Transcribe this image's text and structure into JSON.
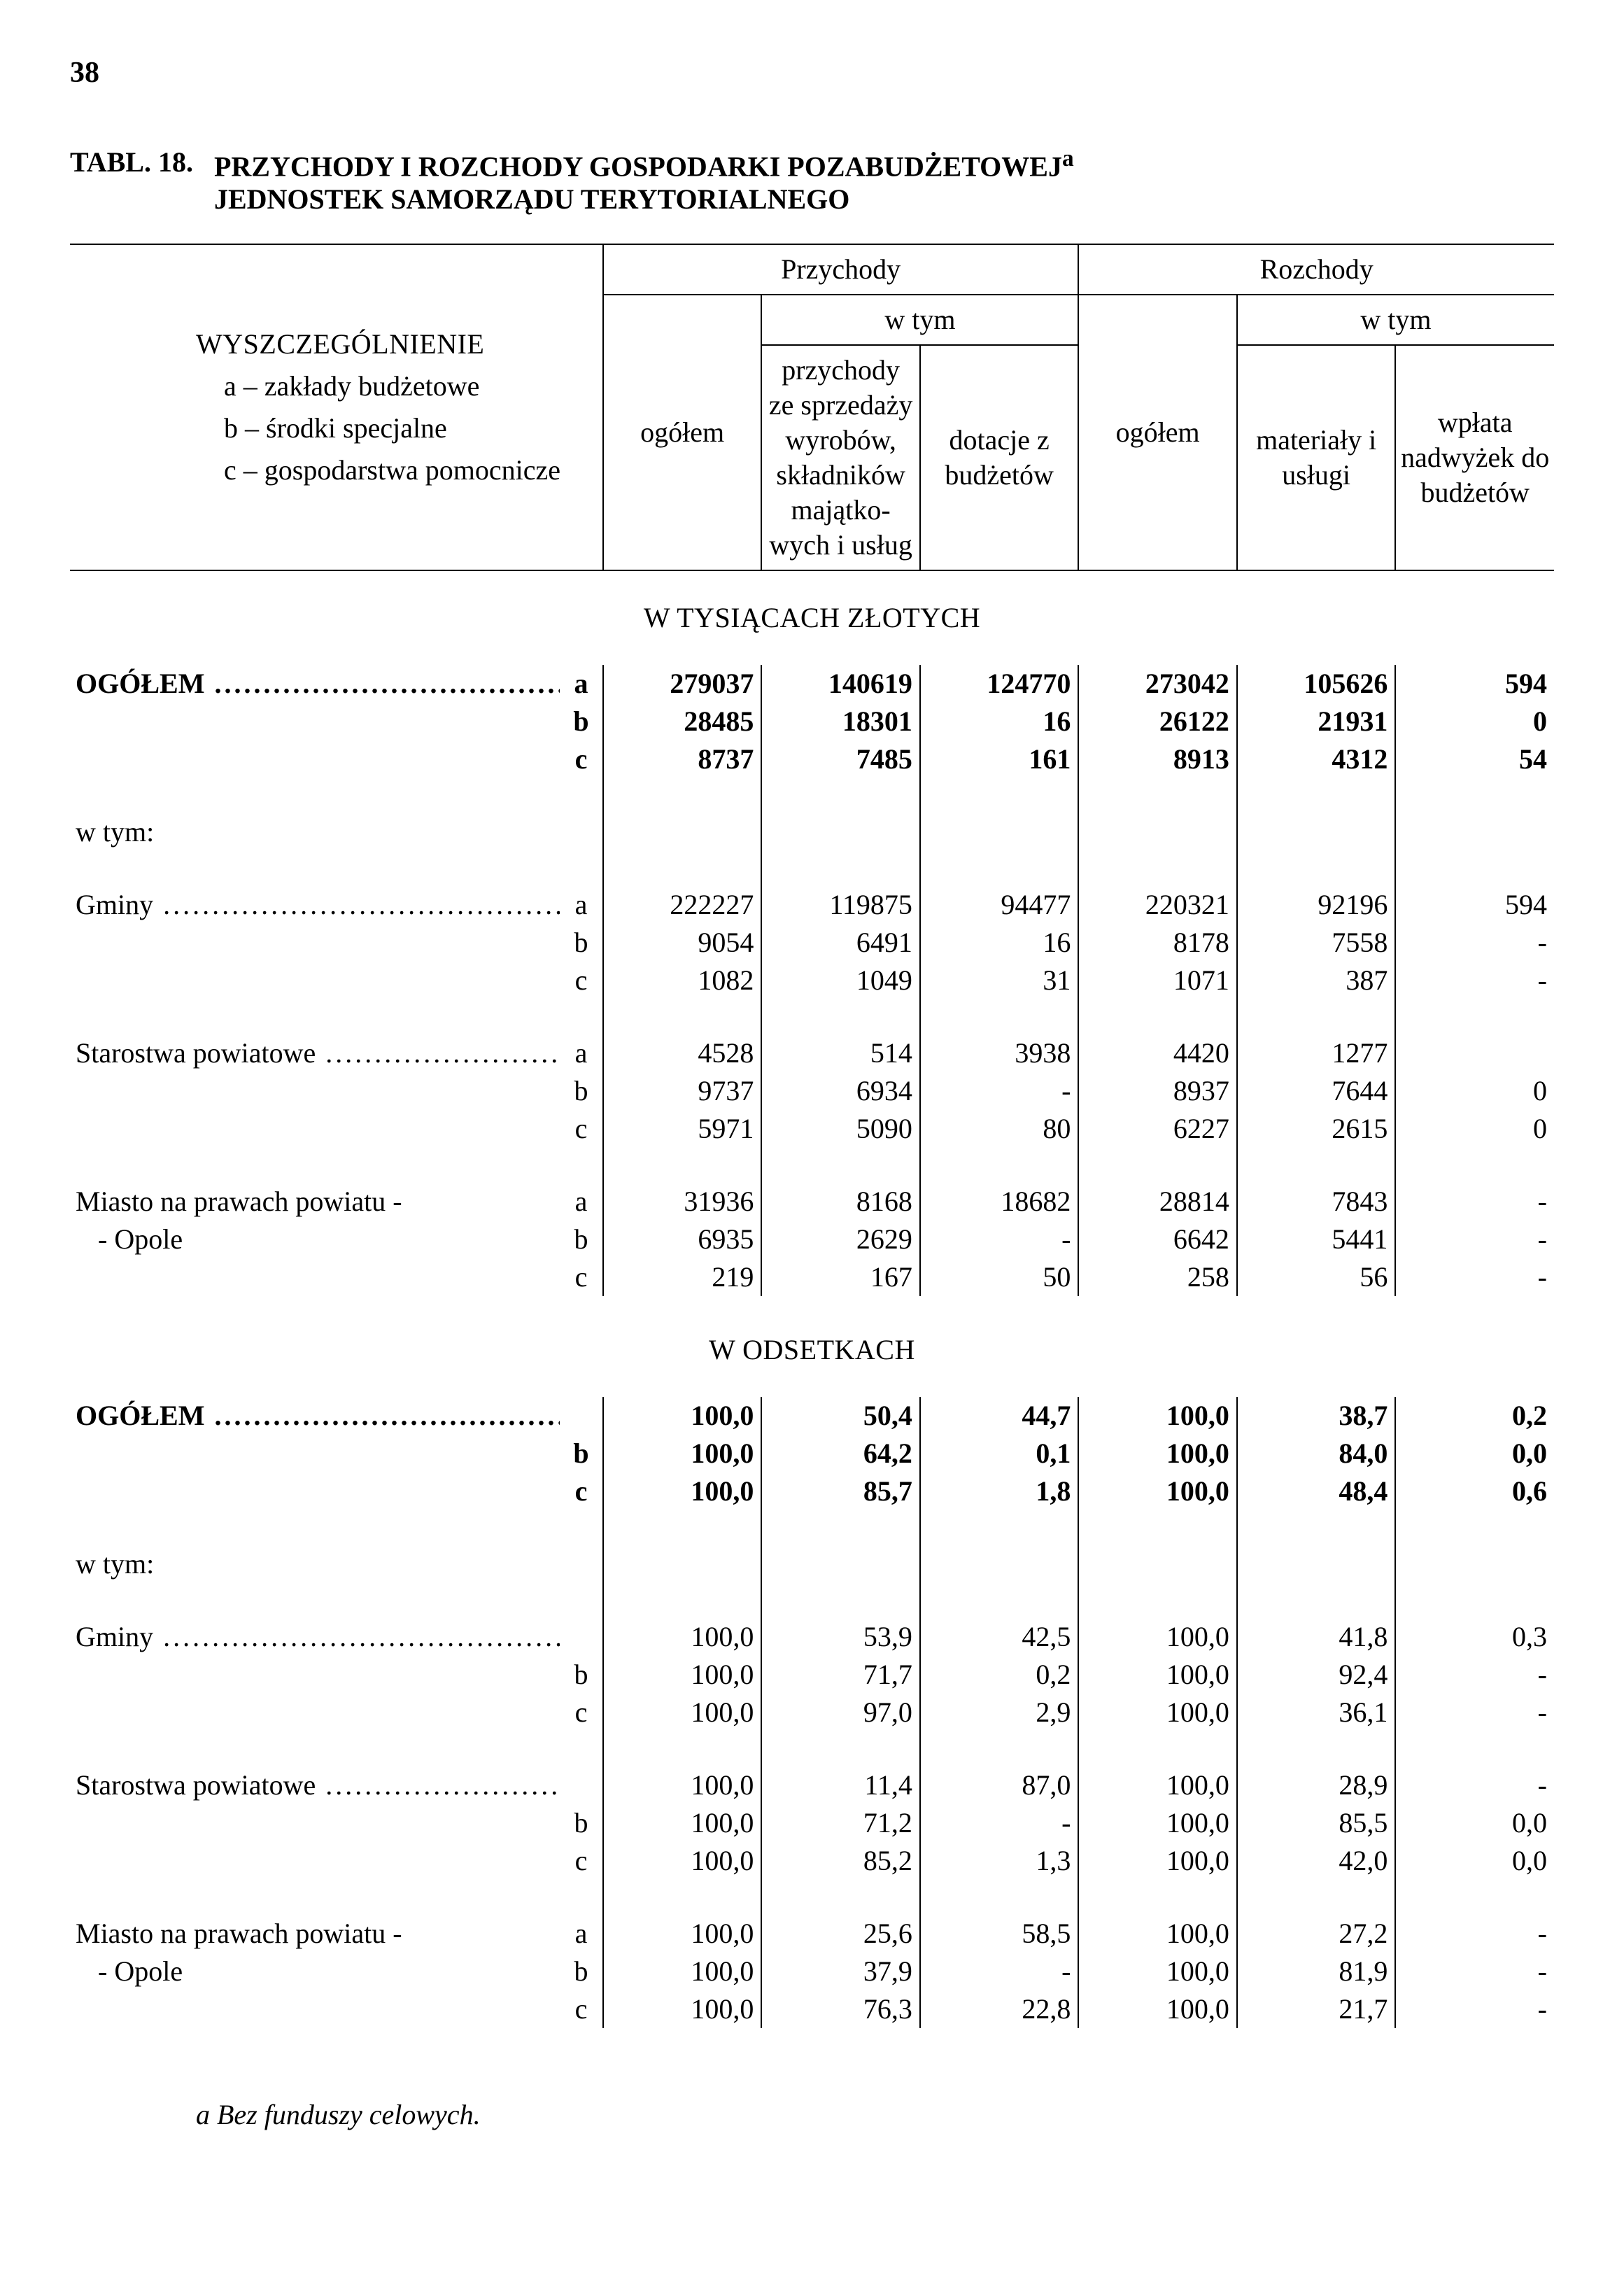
{
  "page_number": "38",
  "table_label": "TABL. 18.",
  "table_title1": "PRZYCHODY I ROZCHODY GOSPODARKI POZABUDŻETOWEJ",
  "table_title_sup": "a",
  "table_title2": "JEDNOSTEK SAMORZĄDU TERYTORIALNEGO",
  "head": {
    "przychody": "Przychody",
    "rozchody": "Rozchody",
    "wtym": "w tym",
    "wyszcz": "WYSZCZEGÓLNIENIE",
    "a_line": "a – zakłady budżetowe",
    "b_line": "b – środki specjalne",
    "c_line": "c – gospodarstwa pomocnicze",
    "ogolem": "ogółem",
    "col2": "przychody ze sprze­daży wyrobów, składników majątko­wych i usług",
    "col3": "dotacje z budżetów",
    "col5": "materiały i usługi",
    "col6": "wpłata nadwyżek do budże­tów"
  },
  "section1": "W TYSIĄCACH ZŁOTYCH",
  "section2": "W ODSETKACH",
  "labels": {
    "ogolem": "OGÓŁEM",
    "wtym": "w tym:",
    "gminy": "Gminy",
    "starostwa": "Starostwa powiatowe",
    "miasto1": "Miasto na prawach powiatu -",
    "miasto2": "- Opole"
  },
  "marks": {
    "a": "a",
    "b": "b",
    "c": "c"
  },
  "abs": {
    "ogolem": {
      "a": [
        "279037",
        "140619",
        "124770",
        "273042",
        "105626",
        "594"
      ],
      "b": [
        "28485",
        "18301",
        "16",
        "26122",
        "21931",
        "0"
      ],
      "c": [
        "8737",
        "7485",
        "161",
        "8913",
        "4312",
        "54"
      ]
    },
    "gminy": {
      "a": [
        "222227",
        "119875",
        "94477",
        "220321",
        "92196",
        "594"
      ],
      "b": [
        "9054",
        "6491",
        "16",
        "8178",
        "7558",
        "-"
      ],
      "c": [
        "1082",
        "1049",
        "31",
        "1071",
        "387",
        "-"
      ]
    },
    "starostwa": {
      "a": [
        "4528",
        "514",
        "3938",
        "4420",
        "1277",
        ""
      ],
      "b": [
        "9737",
        "6934",
        "-",
        "8937",
        "7644",
        "0"
      ],
      "c": [
        "5971",
        "5090",
        "80",
        "6227",
        "2615",
        "0"
      ]
    },
    "miasto": {
      "a": [
        "31936",
        "8168",
        "18682",
        "28814",
        "7843",
        "-"
      ],
      "b": [
        "6935",
        "2629",
        "-",
        "6642",
        "5441",
        "-"
      ],
      "c": [
        "219",
        "167",
        "50",
        "258",
        "56",
        "-"
      ]
    }
  },
  "pct": {
    "ogolem": {
      "a": [
        "100,0",
        "50,4",
        "44,7",
        "100,0",
        "38,7",
        "0,2"
      ],
      "b": [
        "100,0",
        "64,2",
        "0,1",
        "100,0",
        "84,0",
        "0,0"
      ],
      "c": [
        "100,0",
        "85,7",
        "1,8",
        "100,0",
        "48,4",
        "0,6"
      ]
    },
    "gminy": {
      "a": [
        "100,0",
        "53,9",
        "42,5",
        "100,0",
        "41,8",
        "0,3"
      ],
      "b": [
        "100,0",
        "71,7",
        "0,2",
        "100,0",
        "92,4",
        "-"
      ],
      "c": [
        "100,0",
        "97,0",
        "2,9",
        "100,0",
        "36,1",
        "-"
      ]
    },
    "starostwa": {
      "a": [
        "100,0",
        "11,4",
        "87,0",
        "100,0",
        "28,9",
        "-"
      ],
      "b": [
        "100,0",
        "71,2",
        "-",
        "100,0",
        "85,5",
        "0,0"
      ],
      "c": [
        "100,0",
        "85,2",
        "1,3",
        "100,0",
        "42,0",
        "0,0"
      ]
    },
    "miasto": {
      "a": [
        "100,0",
        "25,6",
        "58,5",
        "100,0",
        "27,2",
        "-"
      ],
      "b": [
        "100,0",
        "37,9",
        "-",
        "100,0",
        "81,9",
        "-"
      ],
      "c": [
        "100,0",
        "76,3",
        "22,8",
        "100,0",
        "21,7",
        "-"
      ]
    }
  },
  "footnote": "a Bez funduszy celowych."
}
